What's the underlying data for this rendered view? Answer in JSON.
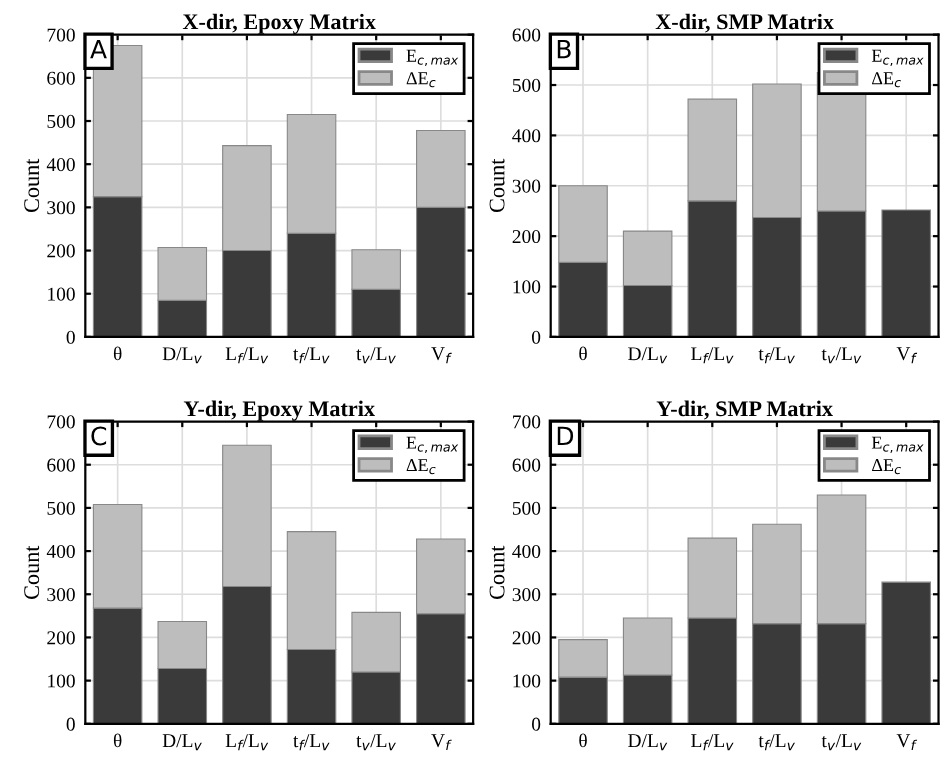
{
  "chart_data": [
    {
      "type": "bar",
      "title": "X-dir, Epoxy Matrix",
      "ylabel": "Count",
      "annotations": [
        "A"
      ],
      "stacked": true,
      "grid": true,
      "legend": "top right",
      "categories": [
        "θ",
        "D/L$_{v}$",
        "L$_{f}$/L$_{v}$",
        "t$_{f}$/L$_{v}$",
        "t$_{v}$/L$_{v}$",
        "V$_{f}$"
      ],
      "ylim": [
        0,
        700
      ],
      "yticks": [
        0,
        100,
        200,
        300,
        400,
        500,
        600,
        700
      ],
      "series": [
        {
          "name": "E$_{c,max}$",
          "color": "#3a3a3a",
          "values": [
            325,
            85,
            200,
            240,
            110,
            300
          ]
        },
        {
          "name": "ΔE$_{c}$",
          "color": "#bdbdbd",
          "values": [
            350,
            122,
            243,
            275,
            92,
            178
          ]
        }
      ]
    },
    {
      "type": "bar",
      "title": "X-dir, SMP Matrix",
      "ylabel": "Count",
      "annotations": [
        "B"
      ],
      "stacked": true,
      "grid": true,
      "legend": "top right",
      "categories": [
        "θ",
        "D/L$_{v}$",
        "L$_{f}$/L$_{v}$",
        "t$_{f}$/L$_{v}$",
        "t$_{v}$/L$_{v}$",
        "V$_{f}$"
      ],
      "ylim": [
        0,
        600
      ],
      "yticks": [
        0,
        100,
        200,
        300,
        400,
        500,
        600
      ],
      "series": [
        {
          "name": "E$_{c,max}$",
          "color": "#3a3a3a",
          "values": [
            148,
            102,
            270,
            237,
            250,
            252
          ]
        },
        {
          "name": "ΔE$_{c}$",
          "color": "#bdbdbd",
          "values": [
            152,
            108,
            202,
            265,
            275,
            null
          ]
        }
      ]
    },
    {
      "type": "bar",
      "title": "Y-dir, Epoxy Matrix",
      "ylabel": "Count",
      "annotations": [
        "C"
      ],
      "stacked": true,
      "grid": true,
      "legend": "top right",
      "categories": [
        "θ",
        "D/L$_{v}$",
        "L$_{f}$/L$_{v}$",
        "t$_{f}$/L$_{v}$",
        "t$_{v}$/L$_{v}$",
        "V$_{f}$"
      ],
      "ylim": [
        0,
        700
      ],
      "yticks": [
        0,
        100,
        200,
        300,
        400,
        500,
        600,
        700
      ],
      "series": [
        {
          "name": "E$_{c,max}$",
          "color": "#3a3a3a",
          "values": [
            268,
            128,
            318,
            172,
            120,
            255
          ]
        },
        {
          "name": "ΔE$_{c}$",
          "color": "#bdbdbd",
          "values": [
            240,
            109,
            327,
            273,
            138,
            173
          ]
        }
      ]
    },
    {
      "type": "bar",
      "title": "Y-dir, SMP Matrix",
      "ylabel": "Count",
      "annotations": [
        "D"
      ],
      "stacked": true,
      "grid": true,
      "legend": "top right",
      "categories": [
        "θ",
        "D/L$_{v}$",
        "L$_{f}$/L$_{v}$",
        "t$_{f}$/L$_{v}$",
        "t$_{v}$/L$_{v}$",
        "V$_{f}$"
      ],
      "ylim": [
        0,
        700
      ],
      "yticks": [
        0,
        100,
        200,
        300,
        400,
        500,
        600,
        700
      ],
      "series": [
        {
          "name": "E$_{c,max}$",
          "color": "#3a3a3a",
          "values": [
            108,
            113,
            245,
            232,
            232,
            328
          ]
        },
        {
          "name": "ΔE$_{c}$",
          "color": "#bdbdbd",
          "values": [
            87,
            132,
            185,
            230,
            298,
            null
          ]
        }
      ]
    }
  ]
}
